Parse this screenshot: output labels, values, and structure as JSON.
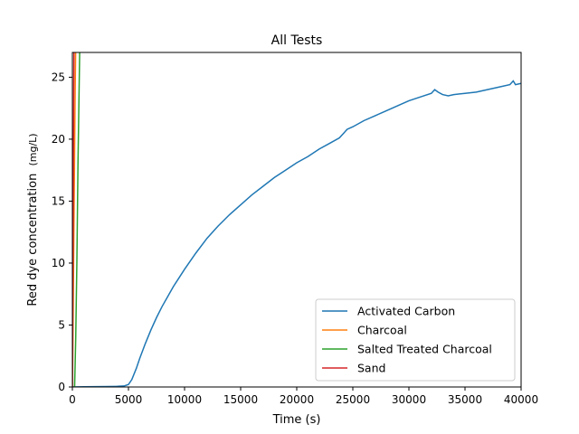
{
  "chart_data": {
    "type": "line",
    "title": "All Tests",
    "xlabel": "Time (s)",
    "ylabel": "Red dye concentration",
    "ylabel_unit": "(mg/L)",
    "xlim": [
      0,
      40000
    ],
    "ylim": [
      0,
      27
    ],
    "xticks": [
      0,
      5000,
      10000,
      15000,
      20000,
      25000,
      30000,
      35000,
      40000
    ],
    "yticks": [
      0,
      5,
      10,
      15,
      20,
      25
    ],
    "grid": false,
    "legend_position": "lower-right",
    "series": [
      {
        "name": "Activated Carbon",
        "color": "#1f77b4",
        "points": [
          [
            0,
            0
          ],
          [
            1000,
            0.02
          ],
          [
            2000,
            0.03
          ],
          [
            3000,
            0.04
          ],
          [
            4000,
            0.05
          ],
          [
            4600,
            0.08
          ],
          [
            5000,
            0.2
          ],
          [
            5300,
            0.6
          ],
          [
            5700,
            1.5
          ],
          [
            6000,
            2.3
          ],
          [
            6500,
            3.5
          ],
          [
            7000,
            4.6
          ],
          [
            7500,
            5.6
          ],
          [
            8000,
            6.5
          ],
          [
            8500,
            7.3
          ],
          [
            9000,
            8.1
          ],
          [
            9500,
            8.8
          ],
          [
            10000,
            9.5
          ],
          [
            11000,
            10.8
          ],
          [
            12000,
            12.0
          ],
          [
            13000,
            13.0
          ],
          [
            14000,
            13.9
          ],
          [
            15000,
            14.7
          ],
          [
            16000,
            15.5
          ],
          [
            17000,
            16.2
          ],
          [
            18000,
            16.9
          ],
          [
            19000,
            17.5
          ],
          [
            20000,
            18.1
          ],
          [
            21000,
            18.6
          ],
          [
            22000,
            19.2
          ],
          [
            23000,
            19.7
          ],
          [
            23800,
            20.1
          ],
          [
            24200,
            20.5
          ],
          [
            24500,
            20.8
          ],
          [
            25000,
            21.0
          ],
          [
            26000,
            21.5
          ],
          [
            27000,
            21.9
          ],
          [
            28000,
            22.3
          ],
          [
            29000,
            22.7
          ],
          [
            30000,
            23.1
          ],
          [
            31000,
            23.4
          ],
          [
            32000,
            23.7
          ],
          [
            32300,
            24.0
          ],
          [
            32600,
            23.8
          ],
          [
            33000,
            23.6
          ],
          [
            33500,
            23.5
          ],
          [
            34000,
            23.6
          ],
          [
            35000,
            23.7
          ],
          [
            36000,
            23.8
          ],
          [
            37000,
            24.0
          ],
          [
            38000,
            24.2
          ],
          [
            39000,
            24.4
          ],
          [
            39300,
            24.7
          ],
          [
            39500,
            24.4
          ],
          [
            40000,
            24.5
          ]
        ]
      },
      {
        "name": "Charcoal",
        "color": "#ff7f0e",
        "points": [
          [
            0,
            0
          ],
          [
            50,
            4
          ],
          [
            100,
            9
          ],
          [
            150,
            14
          ],
          [
            200,
            19
          ],
          [
            250,
            24
          ],
          [
            290,
            27
          ]
        ]
      },
      {
        "name": "Salted Treated Charcoal",
        "color": "#2ca02c",
        "points": [
          [
            200,
            0
          ],
          [
            250,
            2
          ],
          [
            300,
            4
          ],
          [
            350,
            7
          ],
          [
            400,
            10
          ],
          [
            450,
            14
          ],
          [
            500,
            18
          ],
          [
            550,
            21
          ],
          [
            600,
            24
          ],
          [
            650,
            27
          ]
        ]
      },
      {
        "name": "Sand",
        "color": "#d62728",
        "points": [
          [
            0,
            0
          ],
          [
            30,
            6
          ],
          [
            60,
            12
          ],
          [
            90,
            18
          ],
          [
            120,
            24
          ],
          [
            140,
            27
          ]
        ]
      }
    ]
  }
}
